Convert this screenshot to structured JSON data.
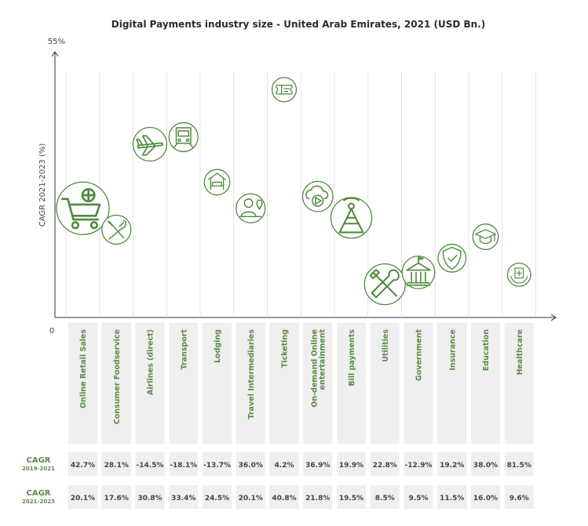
{
  "chart_data": {
    "type": "bubble",
    "title": "Digital Payments industry size - United Arab Emirates, 2021 (USD Bn.)",
    "ylabel": "CAGR 2021-2023 (%)",
    "y_top_label": "55%",
    "y_bottom_label": "0",
    "ylim": [
      0,
      55
    ],
    "categories": [
      "Online Retail Sales",
      "Consumer Foodservice",
      "Airlines (direct)",
      "Transport",
      "Lodging",
      "Travel Intermediaries",
      "Ticketing",
      "On-demand Online entertainment",
      "Bill payments",
      "Utilities",
      "Government",
      "Insurance",
      "Education",
      "Healthcare"
    ],
    "icons": [
      "cart-icon",
      "utensils-icon",
      "airplane-icon",
      "train-icon",
      "bed-icon",
      "travel-agent-icon",
      "ticket-icon",
      "cloud-play-icon",
      "tower-icon",
      "tools-icon",
      "government-building-icon",
      "shield-icon",
      "graduation-cap-icon",
      "health-hands-icon"
    ],
    "bubble_level_pct": [
      23.0,
      18.5,
      36.5,
      38.0,
      28.5,
      23.0,
      48.0,
      25.5,
      21.0,
      7.0,
      9.5,
      12.5,
      17.0,
      9.0
    ],
    "bubble_size": [
      3.0,
      1.0,
      1.4,
      1.0,
      0.7,
      1.0,
      0.6,
      1.1,
      2.0,
      2.0,
      1.3,
      0.9,
      0.7,
      0.5
    ],
    "rows": [
      {
        "label_main": "CAGR",
        "label_sub": "2019-2021",
        "values": [
          "42.7%",
          "28.1%",
          "-14.5%",
          "-18.1%",
          "-13.7%",
          "36.0%",
          "4.2%",
          "36.9%",
          "19.9%",
          "22.8%",
          "-12.9%",
          "19.2%",
          "38.0%",
          "81.5%"
        ]
      },
      {
        "label_main": "CAGR",
        "label_sub": "2021-2023",
        "values": [
          "20.1%",
          "17.6%",
          "30.8%",
          "33.4%",
          "24.5%",
          "20.1%",
          "40.8%",
          "21.8%",
          "19.5%",
          "8.5%",
          "9.5%",
          "11.5%",
          "16.0%",
          "9.6%"
        ]
      }
    ],
    "colors": {
      "accent": "#4d8a3d",
      "label": "#5a8a4a",
      "cell_bg": "#efefef",
      "text": "#2b2b2b"
    }
  }
}
